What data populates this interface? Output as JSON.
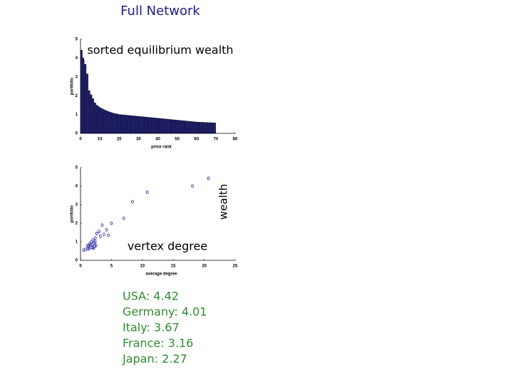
{
  "slide_title": "Full Network",
  "overlay_labels": [
    "sorted equilibrium wealth",
    "wealth",
    "vertex degree"
  ],
  "notes": [
    "USA: 4.42",
    "Germany: 4.01",
    "Italy: 3.67",
    "France: 3.16",
    "Japan: 2.27"
  ],
  "chart_data": [
    {
      "type": "bar",
      "x_label": "price rank",
      "y_label": "portfolio",
      "color": "#1c1c7a",
      "x": [
        1,
        2,
        3,
        4,
        5,
        6,
        7,
        8,
        9,
        10,
        11,
        12,
        13,
        14,
        15,
        16,
        17,
        18,
        19,
        20,
        21,
        22,
        23,
        24,
        25,
        26,
        27,
        28,
        29,
        30,
        31,
        32,
        33,
        34,
        35,
        36,
        37,
        38,
        39,
        40,
        41,
        42,
        43,
        44,
        45,
        46,
        47,
        48,
        49,
        50,
        51,
        52,
        53,
        54,
        55,
        56,
        57,
        58,
        59,
        60,
        61,
        62,
        63,
        64,
        65,
        66,
        67,
        68,
        69,
        70
      ],
      "values": [
        4.42,
        4.01,
        3.67,
        3.16,
        2.27,
        2.05,
        1.85,
        1.62,
        1.5,
        1.42,
        1.35,
        1.3,
        1.25,
        1.2,
        1.16,
        1.12,
        1.09,
        1.06,
        1.04,
        1.02,
        1.0,
        0.99,
        0.98,
        0.97,
        0.96,
        0.95,
        0.94,
        0.93,
        0.92,
        0.91,
        0.9,
        0.89,
        0.88,
        0.87,
        0.86,
        0.85,
        0.84,
        0.83,
        0.82,
        0.81,
        0.8,
        0.79,
        0.78,
        0.77,
        0.76,
        0.75,
        0.74,
        0.73,
        0.72,
        0.71,
        0.7,
        0.69,
        0.68,
        0.67,
        0.66,
        0.65,
        0.64,
        0.63,
        0.62,
        0.61,
        0.6,
        0.6,
        0.59,
        0.59,
        0.58,
        0.58,
        0.57,
        0.57,
        0.56,
        0.56
      ],
      "xlim": [
        0,
        80
      ],
      "xticks": [
        0,
        10,
        20,
        30,
        40,
        50,
        60,
        70,
        80
      ],
      "ylim": [
        0,
        5
      ],
      "yticks": [
        0,
        1,
        2,
        3,
        4,
        5
      ]
    },
    {
      "type": "scatter",
      "x_label": "average degree",
      "y_label": "portfolio",
      "color": "#1c1ca0",
      "x": [
        20.7,
        18.1,
        10.8,
        8.4,
        7.0,
        5.0,
        3.5,
        4.2,
        3.0,
        2.6,
        3.8,
        3.2,
        2.4,
        4.5,
        2.0,
        1.8,
        2.2,
        1.5,
        1.9,
        2.5,
        1.3,
        1.7,
        2.1,
        0.8,
        1.2,
        2.3,
        1.6,
        2.0,
        1.4,
        2.4,
        0.5,
        1.1
      ],
      "values": [
        4.42,
        4.01,
        3.67,
        3.16,
        2.27,
        2.0,
        1.9,
        1.65,
        1.55,
        1.45,
        1.4,
        1.3,
        1.2,
        1.35,
        1.1,
        1.0,
        0.95,
        0.9,
        0.85,
        0.8,
        0.75,
        0.7,
        0.65,
        0.6,
        0.6,
        0.75,
        0.85,
        0.7,
        0.65,
        1.0,
        0.55,
        0.8
      ],
      "xlim": [
        0,
        25
      ],
      "xticks": [
        0,
        5,
        10,
        15,
        20,
        25
      ],
      "ylim": [
        0,
        5
      ],
      "yticks": [
        0,
        1,
        2,
        3,
        4,
        5
      ]
    }
  ]
}
